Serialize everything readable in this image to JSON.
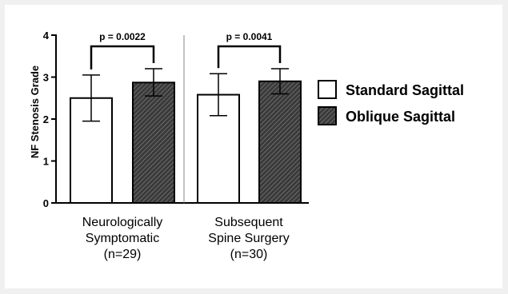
{
  "chart_data": {
    "type": "bar",
    "ylabel": "NF Stenosis Grade",
    "ylim": [
      0,
      4
    ],
    "yticks": [
      "0",
      "1",
      "2",
      "3",
      "4"
    ],
    "grid": false,
    "legend_position": "right",
    "groups": [
      {
        "label_lines": [
          "Neurologically",
          "Symptomatic",
          "(n=29)"
        ],
        "p_label": "p = 0.0022",
        "bars": [
          {
            "series": "Standard Sagittal",
            "value": 2.5,
            "err_low": 1.95,
            "err_high": 3.05
          },
          {
            "series": "Oblique Sagittal",
            "value": 2.87,
            "err_low": 2.55,
            "err_high": 3.2
          }
        ]
      },
      {
        "label_lines": [
          "Subsequent",
          "Spine Surgery",
          "(n=30)"
        ],
        "p_label": "p = 0.0041",
        "bars": [
          {
            "series": "Standard Sagittal",
            "value": 2.58,
            "err_low": 2.08,
            "err_high": 3.08
          },
          {
            "series": "Oblique Sagittal",
            "value": 2.9,
            "err_low": 2.6,
            "err_high": 3.2
          }
        ]
      }
    ],
    "series": [
      {
        "name": "Standard Sagittal",
        "fill": "#ffffff",
        "pattern": "none"
      },
      {
        "name": "Oblique Sagittal",
        "fill": "#3a3a3a",
        "pattern": "diagonal-hatch"
      }
    ]
  }
}
